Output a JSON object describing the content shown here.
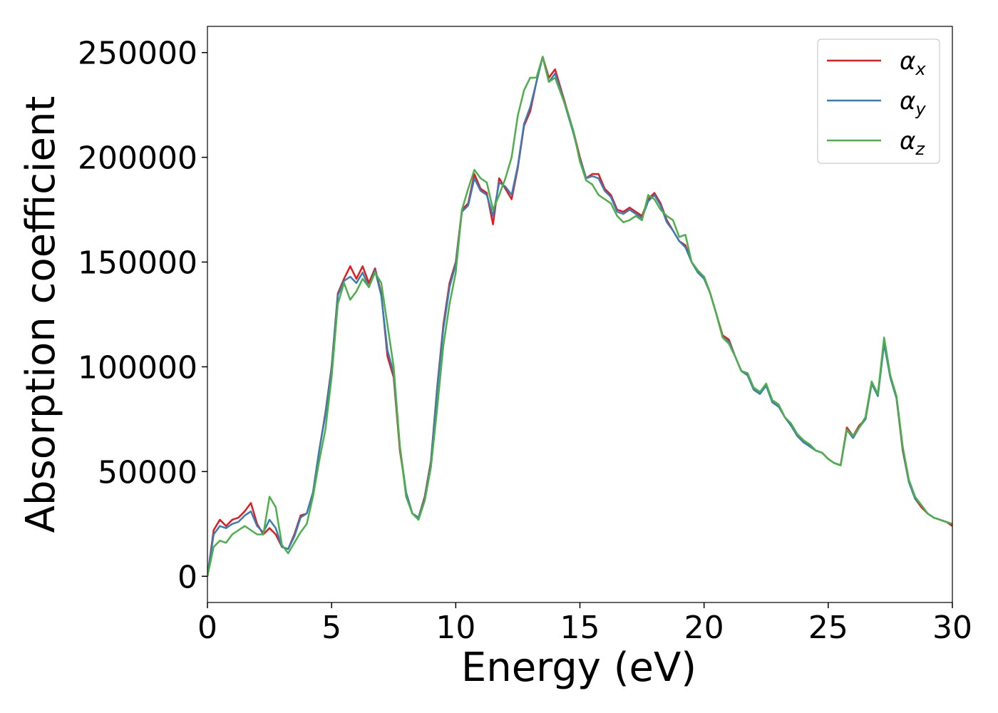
{
  "chart_data": {
    "type": "line",
    "xlabel": "Energy (eV)",
    "ylabel": "Absorption coefficient",
    "xlim": [
      0,
      30
    ],
    "xticks": [
      0,
      5,
      10,
      15,
      20,
      25,
      30
    ],
    "ylim": [
      -12500,
      262500
    ],
    "yticks": [
      0,
      50000,
      100000,
      150000,
      200000,
      250000
    ],
    "legend": "upper right",
    "x": [
      0,
      0.25,
      0.5,
      0.75,
      1,
      1.25,
      1.5,
      1.75,
      2,
      2.25,
      2.5,
      2.75,
      3,
      3.25,
      3.5,
      3.75,
      4,
      4.25,
      4.5,
      4.75,
      5,
      5.25,
      5.5,
      5.75,
      6,
      6.25,
      6.5,
      6.75,
      7,
      7.25,
      7.5,
      7.75,
      8,
      8.25,
      8.5,
      8.75,
      9,
      9.25,
      9.5,
      9.75,
      10,
      10.25,
      10.5,
      10.75,
      11,
      11.25,
      11.5,
      11.75,
      12,
      12.25,
      12.5,
      12.75,
      13,
      13.25,
      13.5,
      13.75,
      14,
      14.25,
      14.5,
      14.75,
      15,
      15.25,
      15.5,
      15.75,
      16,
      16.25,
      16.5,
      16.75,
      17,
      17.25,
      17.5,
      17.75,
      18,
      18.25,
      18.5,
      18.75,
      19,
      19.25,
      19.5,
      19.75,
      20,
      20.25,
      20.5,
      20.75,
      21,
      21.25,
      21.5,
      21.75,
      22,
      22.25,
      22.5,
      22.75,
      23,
      23.25,
      23.5,
      23.75,
      24,
      24.25,
      24.5,
      24.75,
      25,
      25.25,
      25.5,
      25.75,
      26,
      26.25,
      26.5,
      26.75,
      27,
      27.25,
      27.5,
      27.75,
      28,
      28.25,
      28.5,
      28.75,
      29,
      29.25,
      29.5,
      29.75,
      30
    ],
    "series": [
      {
        "name": "αx",
        "color": "#e41a1c",
        "values": [
          0,
          22000,
          27000,
          24000,
          27000,
          28000,
          31000,
          35000,
          25000,
          20000,
          23000,
          20000,
          14000,
          13000,
          20000,
          29000,
          30000,
          40000,
          60000,
          78000,
          100000,
          135000,
          142000,
          148000,
          142000,
          148000,
          140000,
          147000,
          135000,
          105000,
          95000,
          60000,
          40000,
          30000,
          28000,
          38000,
          55000,
          90000,
          120000,
          140000,
          150000,
          175000,
          178000,
          192000,
          185000,
          183000,
          168000,
          190000,
          185000,
          180000,
          195000,
          215000,
          222000,
          236000,
          248000,
          238000,
          242000,
          232000,
          222000,
          212000,
          200000,
          190000,
          192000,
          192000,
          185000,
          182000,
          175000,
          174000,
          176000,
          174000,
          172000,
          180000,
          183000,
          178000,
          170000,
          165000,
          160000,
          158000,
          150000,
          145000,
          143000,
          135000,
          125000,
          115000,
          113000,
          105000,
          98000,
          96000,
          90000,
          88000,
          91000,
          84000,
          82000,
          76000,
          72000,
          68000,
          64000,
          63000,
          60000,
          59000,
          56000,
          54000,
          53000,
          71000,
          67000,
          72000,
          75000,
          92000,
          87000,
          112000,
          95000,
          85000,
          60000,
          45000,
          37000,
          33000,
          30000,
          28000,
          27000,
          26000,
          24000
        ]
      },
      {
        "name": "αy",
        "color": "#377eb8",
        "values": [
          0,
          20000,
          24000,
          23000,
          25000,
          26000,
          29000,
          31000,
          24000,
          21000,
          27000,
          23000,
          14000,
          13000,
          19000,
          28000,
          30000,
          40000,
          60000,
          77000,
          99000,
          134000,
          141000,
          143000,
          140000,
          145000,
          138000,
          146000,
          134000,
          108000,
          97000,
          62000,
          40000,
          30000,
          28000,
          37000,
          54000,
          89000,
          118000,
          138000,
          149000,
          174000,
          177000,
          190000,
          184000,
          182000,
          172000,
          188000,
          186000,
          182000,
          196000,
          216000,
          224000,
          236000,
          248000,
          236000,
          240000,
          231000,
          221000,
          211000,
          199000,
          190000,
          191000,
          190000,
          184000,
          181000,
          174000,
          173000,
          175000,
          173000,
          171000,
          179000,
          182000,
          177000,
          169000,
          165000,
          160000,
          157000,
          150000,
          145000,
          142000,
          135000,
          125000,
          114000,
          112000,
          105000,
          98000,
          96000,
          89000,
          87000,
          91000,
          83000,
          81000,
          76000,
          72000,
          67000,
          64000,
          62000,
          60000,
          59000,
          56000,
          54000,
          53000,
          70000,
          66000,
          71000,
          75000,
          92000,
          86000,
          111000,
          95000,
          85000,
          61000,
          45000,
          37000,
          34000,
          30000,
          28000,
          27000,
          26000,
          25000
        ]
      },
      {
        "name": "αz",
        "color": "#4daf4a",
        "values": [
          0,
          14000,
          17000,
          16000,
          20000,
          22000,
          24000,
          22000,
          20000,
          20000,
          38000,
          33000,
          15000,
          11000,
          16000,
          21000,
          25000,
          38000,
          55000,
          70000,
          95000,
          130000,
          140000,
          132000,
          136000,
          142000,
          138000,
          145000,
          140000,
          120000,
          100000,
          62000,
          38000,
          30000,
          27000,
          36000,
          52000,
          80000,
          110000,
          130000,
          145000,
          175000,
          185000,
          194000,
          190000,
          188000,
          175000,
          182000,
          190000,
          200000,
          220000,
          232000,
          238000,
          238000,
          248000,
          236000,
          238000,
          230000,
          222000,
          212000,
          198000,
          189000,
          187000,
          182000,
          180000,
          178000,
          172000,
          169000,
          170000,
          172000,
          170000,
          182000,
          180000,
          175000,
          172000,
          170000,
          162000,
          163000,
          150000,
          146000,
          143000,
          135000,
          125000,
          114000,
          111000,
          105000,
          98000,
          97000,
          90000,
          88000,
          92000,
          84000,
          82000,
          76000,
          73000,
          68000,
          65000,
          63000,
          60000,
          59000,
          56000,
          54000,
          53000,
          70000,
          67000,
          71000,
          76000,
          93000,
          87000,
          114000,
          96000,
          86000,
          62000,
          46000,
          38000,
          34000,
          30000,
          28000,
          27000,
          26000,
          25000
        ]
      }
    ]
  }
}
